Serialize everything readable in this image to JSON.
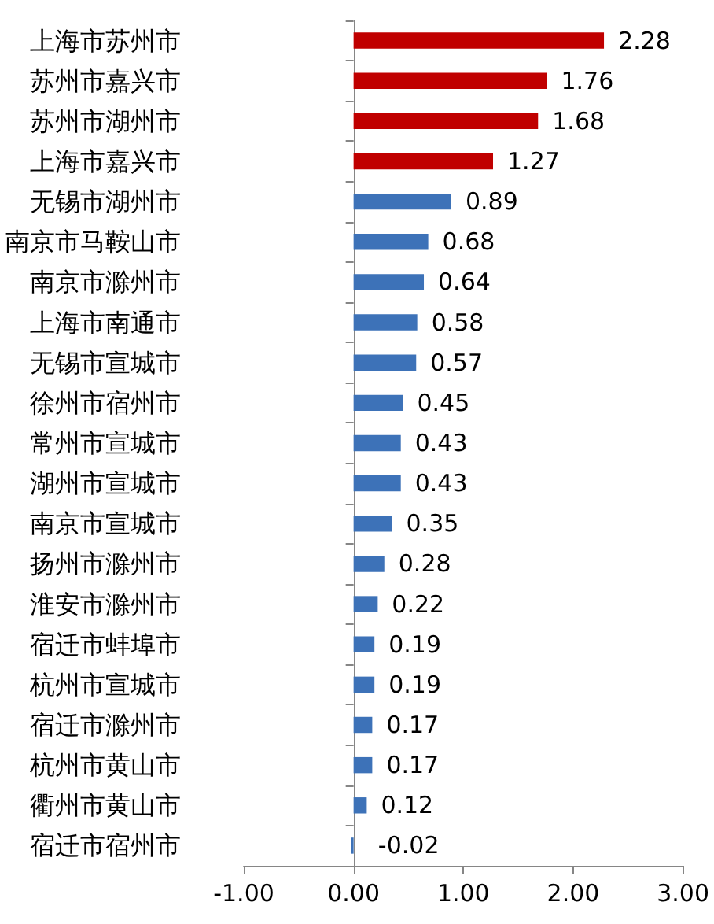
{
  "chart_data": {
    "type": "bar",
    "orientation": "horizontal",
    "categories": [
      "上海市苏州市",
      "苏州市嘉兴市",
      "苏州市湖州市",
      "上海市嘉兴市",
      "无锡市湖州市",
      "南京市马鞍山市",
      "南京市滁州市",
      "上海市南通市",
      "无锡市宣城市",
      "徐州市宿州市",
      "常州市宣城市",
      "湖州市宣城市",
      "南京市宣城市",
      "扬州市滁州市",
      "淮安市滁州市",
      "宿迁市蚌埠市",
      "杭州市宣城市",
      "宿迁市滁州市",
      "杭州市黄山市",
      "衢州市黄山市",
      "宿迁市宿州市"
    ],
    "values": [
      2.28,
      1.76,
      1.68,
      1.27,
      0.89,
      0.68,
      0.64,
      0.58,
      0.57,
      0.45,
      0.43,
      0.43,
      0.35,
      0.28,
      0.22,
      0.19,
      0.19,
      0.17,
      0.17,
      0.12,
      -0.02
    ],
    "colors": [
      "#c00000",
      "#c00000",
      "#c00000",
      "#c00000",
      "#3d72b8",
      "#3d72b8",
      "#3d72b8",
      "#3d72b8",
      "#3d72b8",
      "#3d72b8",
      "#3d72b8",
      "#3d72b8",
      "#3d72b8",
      "#3d72b8",
      "#3d72b8",
      "#3d72b8",
      "#3d72b8",
      "#3d72b8",
      "#3d72b8",
      "#3d72b8",
      "#3d72b8"
    ],
    "xlim": [
      -1,
      3
    ],
    "xticks": [
      {
        "value": -1,
        "label": "-1.00"
      },
      {
        "value": 0,
        "label": "0.00"
      },
      {
        "value": 1,
        "label": "1.00"
      },
      {
        "value": 2,
        "label": "2.00"
      },
      {
        "value": 3,
        "label": "3.00"
      }
    ],
    "data_labels": true
  }
}
